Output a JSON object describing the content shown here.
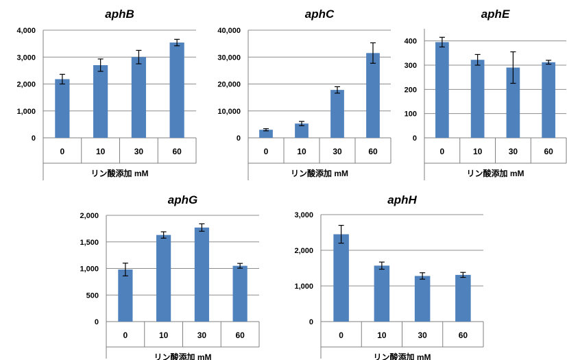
{
  "chart_data": [
    {
      "type": "bar",
      "title": "aphB",
      "categories": [
        "0",
        "10",
        "30",
        "60"
      ],
      "values": [
        2180,
        2700,
        3000,
        3540
      ],
      "errors": [
        180,
        230,
        250,
        120
      ],
      "xlabel": "リン酸添加 mM",
      "ylabel": "",
      "ylim": [
        0,
        4000
      ],
      "yticks": [
        0,
        1000,
        2000,
        3000,
        4000
      ],
      "ytick_labels": [
        "0",
        "1,000",
        "2,000",
        "3,000",
        "4,000"
      ],
      "grid": true
    },
    {
      "type": "bar",
      "title": "aphC",
      "categories": [
        "0",
        "10",
        "30",
        "60"
      ],
      "values": [
        3000,
        5300,
        17800,
        31500
      ],
      "errors": [
        400,
        800,
        1200,
        3800
      ],
      "xlabel": "リン酸添加 mM",
      "ylabel": "",
      "ylim": [
        0,
        40000
      ],
      "yticks": [
        0,
        10000,
        20000,
        30000,
        40000
      ],
      "ytick_labels": [
        "0",
        "10,000",
        "20,000",
        "30,000",
        "40,000"
      ],
      "grid": true
    },
    {
      "type": "bar",
      "title": "aphE",
      "categories": [
        "0",
        "10",
        "30",
        "60"
      ],
      "values": [
        395,
        322,
        290,
        312
      ],
      "errors": [
        20,
        22,
        65,
        8
      ],
      "xlabel": "リン酸添加 mM",
      "ylabel": "",
      "ylim": [
        0,
        450
      ],
      "yticks": [
        0,
        100,
        200,
        300,
        400
      ],
      "ytick_labels": [
        "0",
        "100",
        "200",
        "300",
        "400"
      ],
      "grid": true
    },
    {
      "type": "bar",
      "title": "aphG",
      "categories": [
        "0",
        "10",
        "30",
        "60"
      ],
      "values": [
        980,
        1630,
        1770,
        1050
      ],
      "errors": [
        120,
        60,
        70,
        45
      ],
      "xlabel": "リン酸添加 mM",
      "ylabel": "",
      "ylim": [
        0,
        2000
      ],
      "yticks": [
        0,
        500,
        1000,
        1500,
        2000
      ],
      "ytick_labels": [
        "0",
        "500",
        "1,000",
        "1,500",
        "2,000"
      ],
      "grid": true
    },
    {
      "type": "bar",
      "title": "aphH",
      "categories": [
        "0",
        "10",
        "30",
        "60"
      ],
      "values": [
        2450,
        1570,
        1280,
        1310
      ],
      "errors": [
        250,
        100,
        90,
        70
      ],
      "xlabel": "リン酸添加 mM",
      "ylabel": "",
      "ylim": [
        0,
        3000
      ],
      "yticks": [
        0,
        1000,
        2000,
        3000
      ],
      "ytick_labels": [
        "0",
        "1,000",
        "2,000",
        "3,000"
      ],
      "grid": true
    }
  ],
  "colors": {
    "bar": "#4f81bd",
    "error_bar": "#000000",
    "grid": "#8c8c8c"
  }
}
